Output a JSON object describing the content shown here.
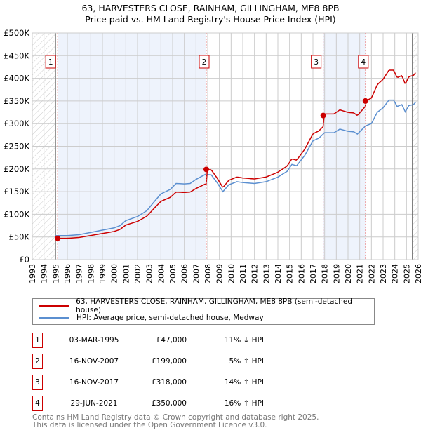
{
  "title": "63, HARVESTERS CLOSE, RAINHAM, GILLINGHAM, ME8 8PB",
  "subtitle": "Price paid vs. HM Land Registry's House Price Index (HPI)",
  "chart_data": {
    "type": "line",
    "xlim": [
      1993,
      2026
    ],
    "ylim": [
      0,
      500000
    ],
    "x_ticks": [
      "1993",
      "1994",
      "1995",
      "1996",
      "1997",
      "1998",
      "1999",
      "2000",
      "2001",
      "2002",
      "2003",
      "2004",
      "2005",
      "2006",
      "2007",
      "2008",
      "2009",
      "2010",
      "2011",
      "2012",
      "2013",
      "2014",
      "2015",
      "2016",
      "2017",
      "2018",
      "2019",
      "2020",
      "2021",
      "2022",
      "2023",
      "2024",
      "2025",
      "2026"
    ],
    "y_ticks": [
      {
        "v": 0,
        "label": "£0"
      },
      {
        "v": 50000,
        "label": "£50K"
      },
      {
        "v": 100000,
        "label": "£100K"
      },
      {
        "v": 150000,
        "label": "£150K"
      },
      {
        "v": 200000,
        "label": "£200K"
      },
      {
        "v": 250000,
        "label": "£250K"
      },
      {
        "v": 300000,
        "label": "£300K"
      },
      {
        "v": 350000,
        "label": "£350K"
      },
      {
        "v": 400000,
        "label": "£400K"
      },
      {
        "v": 450000,
        "label": "£450K"
      },
      {
        "v": 500000,
        "label": "£500K"
      }
    ],
    "grid": true,
    "colors": {
      "price": "#cc0000",
      "hpi": "#5b8fd0"
    },
    "hpi": {
      "x": [
        1995.0,
        1995.2,
        1996,
        1997,
        1998,
        1999,
        2000,
        2000.5,
        2001,
        2002,
        2002.8,
        2003.5,
        2004,
        2004.8,
        2005.3,
        2006,
        2006.5,
        2007,
        2007.8,
        2008.3,
        2008.8,
        2009.3,
        2009.8,
        2010.5,
        2011,
        2012,
        2013,
        2014,
        2014.8,
        2015.2,
        2015.6,
        2016.3,
        2017,
        2017.5,
        2018,
        2018.8,
        2019.3,
        2020,
        2020.5,
        2020.8,
        2021.5,
        2022,
        2022.5,
        2023,
        2023.5,
        2023.9,
        2024.2,
        2024.6,
        2024.9,
        2025.2,
        2025.6,
        2025.8
      ],
      "y": [
        53000,
        53000,
        53000,
        55000,
        60000,
        65000,
        70000,
        75000,
        86000,
        95000,
        108000,
        130000,
        145000,
        155000,
        168000,
        167000,
        168000,
        177000,
        188000,
        187000,
        170000,
        150000,
        165000,
        172000,
        170000,
        168000,
        172000,
        182000,
        195000,
        210000,
        207000,
        230000,
        262000,
        268000,
        280000,
        280000,
        288000,
        283000,
        282000,
        277000,
        295000,
        300000,
        325000,
        335000,
        352000,
        352000,
        338000,
        342000,
        326000,
        340000,
        342000,
        348000
      ]
    },
    "sales": [
      {
        "n": "1",
        "x": 1995.17,
        "date": "03-MAR-1995",
        "price_value": 47000,
        "price": "£47,000",
        "delta": "11% ↓ HPI"
      },
      {
        "n": "2",
        "x": 2007.88,
        "date": "16-NOV-2007",
        "price_value": 199000,
        "price": "£199,000",
        "delta": "5% ↑ HPI"
      },
      {
        "n": "3",
        "x": 2017.88,
        "date": "16-NOV-2017",
        "price_value": 318000,
        "price": "£318,000",
        "delta": "14% ↑ HPI"
      },
      {
        "n": "4",
        "x": 2021.49,
        "date": "29-JUN-2021",
        "price_value": 350000,
        "price": "£350,000",
        "delta": "16% ↑ HPI"
      }
    ],
    "data_end": 2025.5
  },
  "legend": {
    "price": "63, HARVESTERS CLOSE, RAINHAM, GILLINGHAM, ME8 8PB (semi-detached house)",
    "hpi": "HPI: Average price, semi-detached house, Medway"
  },
  "footer": {
    "line1": "Contains HM Land Registry data © Crown copyright and database right 2025.",
    "line2": "This data is licensed under the Open Government Licence v3.0."
  }
}
